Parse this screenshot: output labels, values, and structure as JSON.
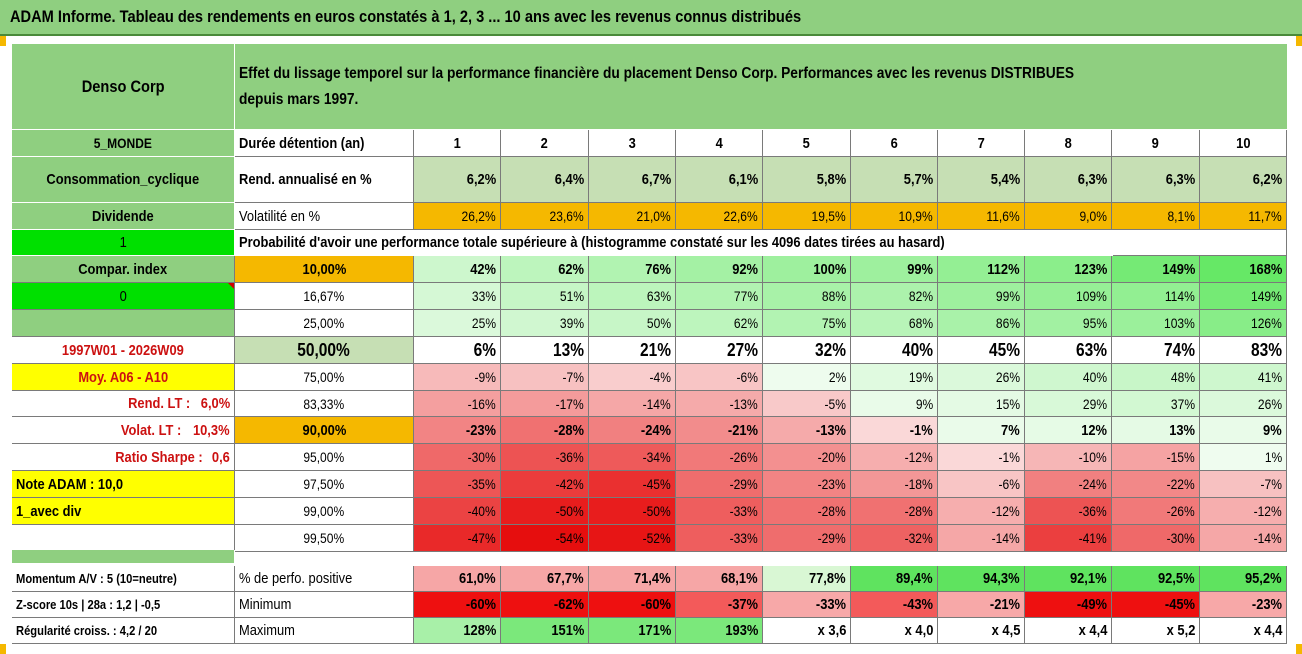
{
  "title": "ADAM Informe. Tableau des rendements en euros constatés à 1, 2, 3 ... 10 ans avec les revenus connus distribués",
  "header": {
    "company": "Denso Corp",
    "description_line1": "Effet du lissage temporel sur la performance financière du placement Denso Corp. Performances avec les revenus DISTRIBUES",
    "description_line2": "depuis mars 1997."
  },
  "left_panel": {
    "region": "5_MONDE",
    "sector": "Consommation_cyclique",
    "dividend_label": "Dividende",
    "dividend_flag": "1",
    "compar_index_label": "Compar. index",
    "compar_index_value": "0",
    "period": "1997W01 - 2026W09",
    "moy": "Moy. A06 - A10",
    "rend_lt_label": "Rend. LT :",
    "rend_lt_value": "6,0%",
    "volat_lt_label": "Volat. LT :",
    "volat_lt_value": "10,3%",
    "sharpe_label": "Ratio Sharpe :",
    "sharpe_value": "0,6",
    "note": "Note ADAM : 10,0",
    "avec_div": "1_avec div"
  },
  "years_label": "Durée détention (an)",
  "years": [
    "1",
    "2",
    "3",
    "4",
    "5",
    "6",
    "7",
    "8",
    "9",
    "10"
  ],
  "rend_label": "Rend. annualisé en %",
  "rend": [
    "6,2%",
    "6,4%",
    "6,7%",
    "6,1%",
    "5,8%",
    "5,7%",
    "5,4%",
    "6,3%",
    "6,3%",
    "6,2%"
  ],
  "vol_label": "Volatilité en %",
  "vol": [
    "26,2%",
    "23,6%",
    "21,0%",
    "22,6%",
    "19,5%",
    "10,9%",
    "11,6%",
    "9,0%",
    "8,1%",
    "11,7%"
  ],
  "prob_title": "Probabilité d'avoir une performance totale supérieure à (histogramme constaté sur les 4096 dates tirées au hasard)",
  "colors": {
    "header_green": "#8fcf80",
    "rend_green": "#c6dfb4",
    "vol_orange": "#f5b800",
    "bright_green": "#00e000",
    "yellow": "#ffff00",
    "period_red": "#cc1111"
  },
  "prob_rows": [
    {
      "p": "10,00%",
      "v": [
        "42%",
        "62%",
        "76%",
        "92%",
        "100%",
        "99%",
        "112%",
        "123%",
        "149%",
        "168%"
      ],
      "bold": true
    },
    {
      "p": "16,67%",
      "v": [
        "33%",
        "51%",
        "63%",
        "77%",
        "88%",
        "82%",
        "99%",
        "109%",
        "114%",
        "149%"
      ]
    },
    {
      "p": "25,00%",
      "v": [
        "25%",
        "39%",
        "50%",
        "62%",
        "75%",
        "68%",
        "86%",
        "95%",
        "103%",
        "126%"
      ]
    },
    {
      "p": "50,00%",
      "v": [
        "6%",
        "13%",
        "21%",
        "27%",
        "32%",
        "40%",
        "45%",
        "63%",
        "74%",
        "83%"
      ],
      "big": true
    },
    {
      "p": "75,00%",
      "v": [
        "-9%",
        "-7%",
        "-4%",
        "-6%",
        "2%",
        "19%",
        "26%",
        "40%",
        "48%",
        "41%"
      ]
    },
    {
      "p": "83,33%",
      "v": [
        "-16%",
        "-17%",
        "-14%",
        "-13%",
        "-5%",
        "9%",
        "15%",
        "29%",
        "37%",
        "26%"
      ]
    },
    {
      "p": "90,00%",
      "v": [
        "-23%",
        "-28%",
        "-24%",
        "-21%",
        "-13%",
        "-1%",
        "7%",
        "12%",
        "13%",
        "9%"
      ],
      "bold": true
    },
    {
      "p": "95,00%",
      "v": [
        "-30%",
        "-36%",
        "-34%",
        "-26%",
        "-20%",
        "-12%",
        "-1%",
        "-10%",
        "-15%",
        "1%"
      ]
    },
    {
      "p": "97,50%",
      "v": [
        "-35%",
        "-42%",
        "-45%",
        "-29%",
        "-23%",
        "-18%",
        "-6%",
        "-24%",
        "-22%",
        "-7%"
      ]
    },
    {
      "p": "99,00%",
      "v": [
        "-40%",
        "-50%",
        "-50%",
        "-33%",
        "-28%",
        "-28%",
        "-12%",
        "-36%",
        "-26%",
        "-12%"
      ]
    },
    {
      "p": "99,50%",
      "v": [
        "-47%",
        "-54%",
        "-52%",
        "-33%",
        "-29%",
        "-32%",
        "-14%",
        "-41%",
        "-30%",
        "-14%"
      ]
    }
  ],
  "bottom": {
    "momentum": "Momentum A/V : 5 (10=neutre)",
    "zscore": "Z-score 10s | 28a : 1,2 | -0,5",
    "regularite": "Régularité croiss. : 4,2 / 20",
    "pos_label": "% de perfo. positive",
    "pos": [
      "61,0%",
      "67,7%",
      "71,4%",
      "68,1%",
      "77,8%",
      "89,4%",
      "94,3%",
      "92,1%",
      "92,5%",
      "95,2%"
    ],
    "min_label": "Minimum",
    "min": [
      "-60%",
      "-62%",
      "-60%",
      "-37%",
      "-33%",
      "-43%",
      "-21%",
      "-49%",
      "-45%",
      "-23%"
    ],
    "max_label": "Maximum",
    "max": [
      "128%",
      "151%",
      "171%",
      "193%",
      "x 3,6",
      "x 4,0",
      "x 4,5",
      "x 4,4",
      "x 5,2",
      "x 4,4"
    ]
  }
}
